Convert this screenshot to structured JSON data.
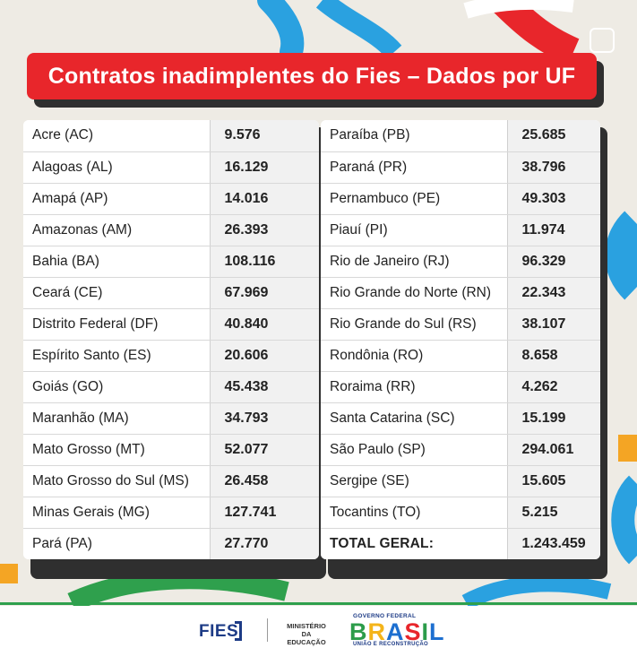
{
  "title": "Contratos inadimplentes do Fies – Dados por UF",
  "left_table": [
    {
      "uf": "Acre (AC)",
      "value": "9.576"
    },
    {
      "uf": "Alagoas (AL)",
      "value": "16.129"
    },
    {
      "uf": "Amapá (AP)",
      "value": "14.016"
    },
    {
      "uf": "Amazonas (AM)",
      "value": "26.393"
    },
    {
      "uf": "Bahia (BA)",
      "value": "108.116"
    },
    {
      "uf": "Ceará (CE)",
      "value": "67.969"
    },
    {
      "uf": "Distrito Federal (DF)",
      "value": "40.840"
    },
    {
      "uf": "Espírito Santo (ES)",
      "value": "20.606"
    },
    {
      "uf": "Goiás (GO)",
      "value": "45.438"
    },
    {
      "uf": "Maranhão (MA)",
      "value": "34.793"
    },
    {
      "uf": "Mato Grosso (MT)",
      "value": "52.077"
    },
    {
      "uf": "Mato Grosso do Sul (MS)",
      "value": "26.458"
    },
    {
      "uf": "Minas Gerais (MG)",
      "value": "127.741"
    },
    {
      "uf": "Pará (PA)",
      "value": "27.770"
    }
  ],
  "right_table": [
    {
      "uf": "Paraíba (PB)",
      "value": "25.685"
    },
    {
      "uf": "Paraná (PR)",
      "value": "38.796"
    },
    {
      "uf": "Pernambuco (PE)",
      "value": "49.303"
    },
    {
      "uf": "Piauí (PI)",
      "value": "11.974"
    },
    {
      "uf": "Rio de Janeiro (RJ)",
      "value": "96.329"
    },
    {
      "uf": "Rio Grande do Norte (RN)",
      "value": "22.343"
    },
    {
      "uf": "Rio Grande do Sul (RS)",
      "value": "38.107"
    },
    {
      "uf": "Rondônia (RO)",
      "value": "8.658"
    },
    {
      "uf": "Roraima (RR)",
      "value": "4.262"
    },
    {
      "uf": "Santa Catarina (SC)",
      "value": "15.199"
    },
    {
      "uf": "São Paulo (SP)",
      "value": "294.061"
    },
    {
      "uf": "Sergipe (SE)",
      "value": "15.605"
    },
    {
      "uf": "Tocantins (TO)",
      "value": "5.215"
    }
  ],
  "total": {
    "label": "TOTAL GERAL:",
    "value": "1.243.459"
  },
  "footer": {
    "fies": "FIES",
    "ministerio_line1": "MINISTÉRIO DA",
    "ministerio_line2": "EDUCAÇÃO",
    "gov_top": "GOVERNO FEDERAL",
    "brasil": [
      "B",
      "R",
      "A",
      "S",
      "I",
      "L"
    ],
    "gov_bottom": "UNIÃO E RECONSTRUÇÃO"
  },
  "colors": {
    "title_red": "#e8262b",
    "shadow": "#2f2f2f",
    "background": "#eeebe4",
    "footer_green": "#2ea04d",
    "fies_blue": "#1d3b86"
  }
}
